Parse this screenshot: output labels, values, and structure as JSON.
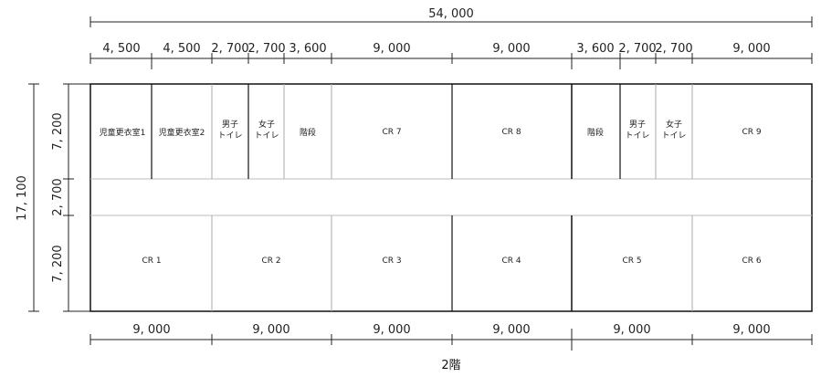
{
  "total_width": "54, 000",
  "total_depth": "17, 100",
  "top_segments": [
    "4, 500",
    "4, 500",
    "2, 700",
    "2, 700",
    "3, 600",
    "9, 000",
    "9, 000",
    "3, 600",
    "2, 700",
    "2, 700",
    "9, 000"
  ],
  "bottom_segments": [
    "9, 000",
    "9, 000",
    "9, 000",
    "9, 000",
    "9, 000",
    "9, 000"
  ],
  "left_segments": [
    "7, 200",
    "2, 700",
    "7, 200"
  ],
  "rooms_top": [
    {
      "label": "児童更衣室1"
    },
    {
      "label": "児童更衣室2"
    },
    {
      "label": "男子トイレ",
      "line1": "男子",
      "line2": "トイレ"
    },
    {
      "label": "女子トイレ",
      "line1": "女子",
      "line2": "トイレ"
    },
    {
      "label": "階段"
    },
    {
      "label": "CR 7"
    },
    {
      "label": "CR 8"
    },
    {
      "label": "階段"
    },
    {
      "label": "男子トイレ",
      "line1": "男子",
      "line2": "トイレ"
    },
    {
      "label": "女子トイレ",
      "line1": "女子",
      "line2": "トイレ"
    },
    {
      "label": "CR 9"
    }
  ],
  "rooms_bottom": [
    "CR 1",
    "CR 2",
    "CR 3",
    "CR 4",
    "CR 5",
    "CR 6"
  ],
  "floor_label": "2階"
}
